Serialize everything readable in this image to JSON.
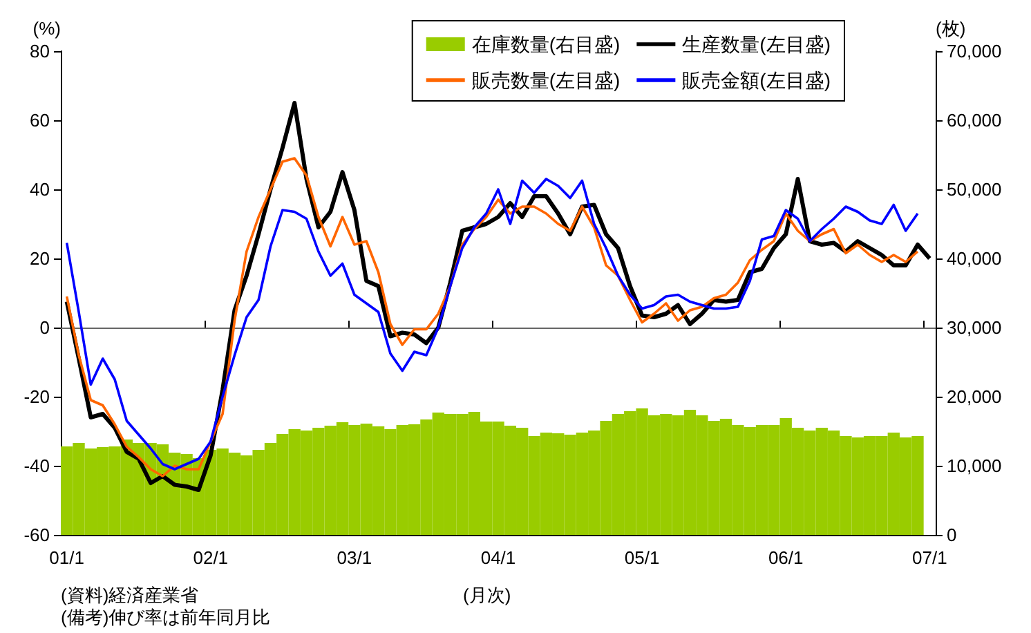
{
  "chart_data": {
    "type": "line",
    "categories": [
      "01/1",
      null,
      null,
      null,
      null,
      null,
      null,
      null,
      null,
      null,
      null,
      null,
      "02/1",
      null,
      null,
      null,
      null,
      null,
      null,
      null,
      null,
      null,
      null,
      null,
      "03/1",
      null,
      null,
      null,
      null,
      null,
      null,
      null,
      null,
      null,
      null,
      null,
      "04/1",
      null,
      null,
      null,
      null,
      null,
      null,
      null,
      null,
      null,
      null,
      null,
      "05/1",
      null,
      null,
      null,
      null,
      null,
      null,
      null,
      null,
      null,
      null,
      null,
      "06/1",
      null,
      null,
      null,
      null,
      null,
      null,
      null,
      null,
      null,
      null,
      null,
      "07/1"
    ],
    "series": [
      {
        "name": "在庫数量(右目盛)",
        "type": "bar",
        "axis": "y2",
        "color": "#99cc00",
        "values": [
          12800,
          13300,
          12500,
          12700,
          12800,
          13800,
          13300,
          13300,
          13100,
          11900,
          11700,
          11100,
          12300,
          12500,
          11900,
          11500,
          12300,
          13300,
          14600,
          15300,
          15100,
          15500,
          15800,
          16300,
          15900,
          16100,
          15700,
          15300,
          15900,
          16000,
          16700,
          17700,
          17500,
          17500,
          17800,
          16400,
          16400,
          15800,
          15500,
          14300,
          14800,
          14700,
          14500,
          14800,
          15100,
          16500,
          17500,
          17900,
          18300,
          17300,
          17500,
          17300,
          18100,
          17300,
          16500,
          16800,
          15900,
          15600,
          15900,
          15900,
          16900,
          15500,
          15100,
          15500,
          15100,
          14300,
          14100,
          14300,
          14300,
          14800,
          14100,
          14300,
          null
        ]
      },
      {
        "name": "生産数量(左目盛)",
        "color": "#000000",
        "values": [
          7.5,
          -9,
          -26,
          -25,
          -29,
          -36,
          -38,
          -45,
          -43,
          -45.5,
          -46,
          -47,
          -37,
          -18,
          5,
          15,
          27,
          40,
          52,
          65,
          43,
          29,
          33.5,
          45,
          34,
          13.5,
          12,
          -2.5,
          -1.5,
          -2,
          -4.5,
          0,
          13,
          28,
          29,
          30,
          32,
          36,
          32,
          38,
          38,
          33,
          27,
          35,
          35.5,
          27,
          23,
          12,
          3.5,
          3,
          4,
          6.5,
          1,
          4,
          8,
          7.5,
          8,
          16,
          17,
          23,
          27,
          43,
          25,
          24,
          24.5,
          22,
          25,
          23,
          21,
          18,
          18,
          24,
          20
        ]
      },
      {
        "name": "販売数量(左目盛)",
        "color": "#ff6600",
        "values": [
          9,
          -8,
          -21,
          -22.5,
          -28,
          -34.5,
          -37.5,
          -41,
          -43,
          -40,
          -41,
          -41,
          -33,
          -25,
          2,
          22,
          32,
          40,
          48,
          49,
          44,
          32,
          23.5,
          32,
          24,
          25,
          16,
          1,
          -5,
          -0.5,
          -0.5,
          4,
          12,
          24,
          28.5,
          32,
          37,
          33,
          35,
          35,
          33,
          30,
          28,
          35,
          29,
          18,
          15,
          8,
          1.5,
          4,
          7,
          2,
          5,
          6,
          8.5,
          9.5,
          13,
          19.5,
          22.5,
          25,
          33,
          28,
          25,
          27,
          28.5,
          21.5,
          24,
          21,
          19,
          21,
          19,
          22,
          null
        ]
      },
      {
        "name": "販売金額(左目盛)",
        "color": "#0000ff",
        "values": [
          24.5,
          4.5,
          -16.5,
          -9,
          -15,
          -27,
          -31,
          -35,
          -39.5,
          -41,
          -39.5,
          -38,
          -33,
          -20,
          -8,
          3,
          8,
          23.5,
          34,
          33.5,
          31.5,
          22,
          15,
          18.5,
          9.5,
          7,
          4.5,
          -7.5,
          -12.5,
          -7,
          -8,
          0,
          12,
          23,
          29,
          33,
          40,
          30,
          42.5,
          39,
          43,
          41,
          37.5,
          42.5,
          30,
          23,
          15,
          9.5,
          5.5,
          6.5,
          9,
          9.5,
          7.5,
          6.5,
          5.5,
          5.5,
          6,
          13.5,
          25.5,
          26.5,
          34,
          31.5,
          25,
          28.5,
          31.5,
          35,
          33.5,
          31,
          30,
          35.5,
          28,
          33,
          null
        ]
      }
    ],
    "xlabel": "(月次)",
    "ylabel": "(%)",
    "y2label": "(枚)",
    "ylim": [
      -60,
      80
    ],
    "yticks": [
      -60,
      -40,
      -20,
      0,
      20,
      40,
      60,
      80
    ],
    "y2lim": [
      0,
      70000
    ],
    "y2ticks": [
      0,
      {
        "value": 10000,
        "label": "10,000"
      },
      {
        "value": 20000,
        "label": "20,000"
      },
      {
        "value": 30000,
        "label": "30,000"
      },
      {
        "value": 40000,
        "label": "40,000"
      },
      {
        "value": 50000,
        "label": "50,000"
      },
      {
        "value": 60000,
        "label": "60,000"
      },
      {
        "value": 70000,
        "label": "70,000"
      }
    ],
    "legend": "top right",
    "marker": "none",
    "annotations": [
      "(資料)経済産業省",
      "(備考)伸び率は前年同月比"
    ]
  }
}
